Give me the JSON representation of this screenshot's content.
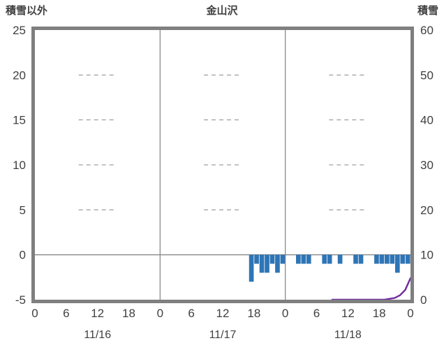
{
  "header": {
    "left_axis_title": "積雪以外",
    "chart_title": "金山沢",
    "right_axis_title": "積雪"
  },
  "chart_data": {
    "type": "bar",
    "title": "金山沢",
    "left_axis": {
      "label": "積雪以外",
      "min": -5,
      "max": 25,
      "ticks": [
        25,
        20,
        15,
        10,
        5,
        0,
        -5
      ]
    },
    "right_axis": {
      "label": "積雪",
      "min": 0,
      "max": 60,
      "ticks": [
        60,
        50,
        40,
        30,
        20,
        10,
        0
      ]
    },
    "x_axis": {
      "hours_total": 72,
      "tick_interval_hours": 6,
      "tick_labels": [
        "0",
        "6",
        "12",
        "18",
        "0",
        "6",
        "12",
        "18",
        "0",
        "6",
        "12",
        "18",
        "0"
      ],
      "day_labels": [
        "11/16",
        "11/17",
        "11/18"
      ]
    },
    "grid": {
      "dashed_levels": [
        20,
        15,
        10,
        5
      ],
      "dashed_centers": [
        12,
        36,
        60
      ],
      "day_lines": [
        24,
        48
      ]
    },
    "colors": {
      "grid": "#8a8a8a",
      "frame": "#7f7f7f",
      "text": "#404040"
    },
    "series": [
      {
        "name": "積雪以外",
        "type": "bar",
        "axis": "left",
        "color": "#2E75B6",
        "points": [
          [
            41,
            -3
          ],
          [
            42,
            -1
          ],
          [
            43,
            -2
          ],
          [
            44,
            -2
          ],
          [
            45,
            -1
          ],
          [
            46,
            -2
          ],
          [
            47,
            -1
          ],
          [
            50,
            -1
          ],
          [
            51,
            -1
          ],
          [
            52,
            -1
          ],
          [
            55,
            -1
          ],
          [
            56,
            -1
          ],
          [
            58,
            -1
          ],
          [
            61,
            -1
          ],
          [
            62,
            -1
          ],
          [
            65,
            -1
          ],
          [
            66,
            -1
          ],
          [
            67,
            -1
          ],
          [
            68,
            -1
          ],
          [
            69,
            -2
          ],
          [
            70,
            -1
          ],
          [
            71,
            -1
          ]
        ]
      },
      {
        "name": "積雪",
        "type": "line",
        "axis": "right",
        "color": "#7030A0",
        "points": [
          [
            57,
            0
          ],
          [
            64,
            0
          ],
          [
            67,
            0
          ],
          [
            68,
            0.2
          ],
          [
            69,
            0.4
          ],
          [
            70,
            1
          ],
          [
            71,
            2.2
          ],
          [
            72,
            4.8
          ]
        ]
      }
    ]
  }
}
